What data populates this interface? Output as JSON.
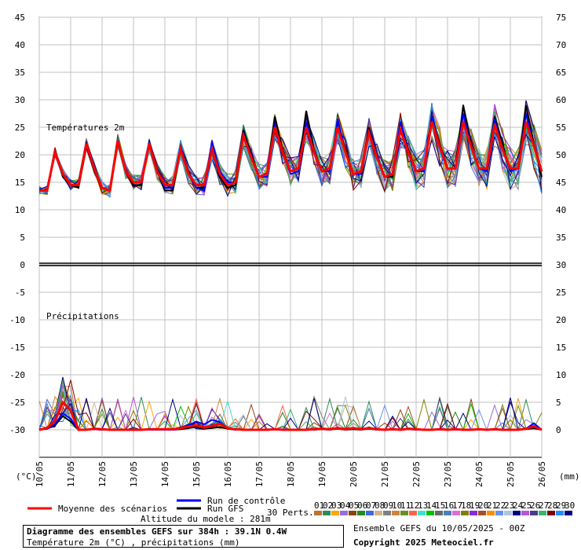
{
  "chart_data": {
    "type": "line",
    "title": "Diagramme des ensembles GEFS sur 384h : 39.1N 0.4W",
    "subtitle": "Température 2m (°C) , précipitations (mm)",
    "panel_top_label": "Températures 2m",
    "panel_bottom_label": "Précipitations",
    "y_left_unit": "(°C)",
    "y_right_unit": "(mm)",
    "y_left_ticks": [
      "45",
      "40",
      "35",
      "30",
      "25",
      "20",
      "15",
      "10",
      "5",
      "0",
      "-5",
      "-10",
      "-15",
      "-20",
      "-25",
      "-30"
    ],
    "y_right_ticks": [
      "75",
      "70",
      "65",
      "60",
      "55",
      "50",
      "45",
      "40",
      "35",
      "30",
      "25",
      "20",
      "15",
      "10",
      "5",
      "0"
    ],
    "x_ticks": [
      "10/05",
      "11/05",
      "12/05",
      "13/05",
      "14/05",
      "15/05",
      "16/05",
      "17/05",
      "18/05",
      "19/05",
      "20/05",
      "21/05",
      "22/05",
      "23/05",
      "24/05",
      "25/05",
      "26/05"
    ],
    "grid": true,
    "temperature": {
      "x_hours": [
        0,
        6,
        12,
        18,
        24,
        30,
        36,
        42,
        48,
        54,
        60,
        66,
        72,
        78,
        84,
        90,
        96,
        102,
        108,
        114,
        120,
        126,
        132,
        138,
        144,
        150,
        156,
        162,
        168,
        174,
        180,
        186,
        192,
        198,
        204,
        210,
        216,
        222,
        228,
        234,
        240,
        246,
        252,
        258,
        264,
        270,
        276,
        282,
        288,
        294,
        300,
        306,
        312,
        318,
        324,
        330,
        336,
        342,
        348,
        354,
        360,
        366,
        372,
        378,
        384
      ],
      "mean": [
        13.5,
        13.5,
        20.5,
        16.5,
        14.5,
        14.5,
        22.0,
        17.5,
        14.0,
        13.5,
        22.5,
        17.0,
        15.0,
        15.0,
        22.0,
        17.0,
        14.5,
        14.5,
        21.0,
        16.5,
        14.5,
        14.5,
        21.0,
        16.5,
        14.5,
        15.0,
        23.5,
        19.5,
        16.0,
        16.5,
        25.0,
        20.5,
        17.0,
        17.5,
        25.0,
        20.5,
        17.0,
        17.5,
        25.0,
        20.5,
        16.5,
        17.0,
        24.0,
        19.5,
        16.0,
        16.5,
        24.5,
        20.5,
        17.0,
        17.5,
        26.0,
        21.5,
        17.5,
        17.5,
        26.0,
        21.5,
        17.5,
        17.5,
        25.5,
        21.0,
        17.5,
        17.5,
        26.0,
        21.5,
        17.0
      ],
      "gfs": [
        13.5,
        13.5,
        21.0,
        16.0,
        14.5,
        14.0,
        21.5,
        17.0,
        14.0,
        13.5,
        22.0,
        17.0,
        14.5,
        14.5,
        22.0,
        17.0,
        13.5,
        13.5,
        21.0,
        17.0,
        14.0,
        14.0,
        21.0,
        16.0,
        14.0,
        14.5,
        24.5,
        20.0,
        16.0,
        16.5,
        27.0,
        21.0,
        17.0,
        17.5,
        28.0,
        21.0,
        17.0,
        17.5,
        26.0,
        21.0,
        16.5,
        17.0,
        25.0,
        20.0,
        16.0,
        16.0,
        26.0,
        21.0,
        17.0,
        17.5,
        27.0,
        22.0,
        17.5,
        17.5,
        29.0,
        22.0,
        17.5,
        17.5,
        27.0,
        22.0,
        17.0,
        17.5,
        29.0,
        22.0,
        16.0
      ],
      "control": [
        13.5,
        13.5,
        20.5,
        16.5,
        14.5,
        14.5,
        22.0,
        17.5,
        14.0,
        13.5,
        22.5,
        17.0,
        15.0,
        15.0,
        22.0,
        17.0,
        14.0,
        14.0,
        21.5,
        16.5,
        14.0,
        13.5,
        22.5,
        17.0,
        15.0,
        15.0,
        24.0,
        19.5,
        16.0,
        16.0,
        25.5,
        20.5,
        16.5,
        17.0,
        26.0,
        20.5,
        17.0,
        17.0,
        26.5,
        20.5,
        16.5,
        16.5,
        24.5,
        20.0,
        16.0,
        16.5,
        26.0,
        20.5,
        17.0,
        17.0,
        27.0,
        21.5,
        17.5,
        17.5,
        27.5,
        21.5,
        17.5,
        17.0,
        26.5,
        21.0,
        17.0,
        17.5,
        27.5,
        21.5,
        17.0
      ]
    },
    "precipitation": {
      "x_hours": [
        0,
        6,
        12,
        18,
        24,
        30,
        36,
        42,
        48,
        54,
        60,
        66,
        72,
        78,
        84,
        90,
        96,
        102,
        108,
        114,
        120,
        126,
        132,
        138,
        144,
        150,
        156,
        162,
        168,
        174,
        180,
        186,
        192,
        198,
        204,
        210,
        216,
        222,
        228,
        234,
        240,
        246,
        252,
        258,
        264,
        270,
        276,
        282,
        288,
        294,
        300,
        306,
        312,
        318,
        324,
        330,
        336,
        342,
        348,
        354,
        360,
        366,
        372,
        378,
        384
      ],
      "mean": [
        0,
        0.3,
        1.6,
        5.0,
        3.5,
        0,
        0,
        0.2,
        0.1,
        0,
        0,
        0,
        0,
        0,
        0.1,
        0.1,
        0.1,
        0.1,
        0.3,
        0.6,
        0.8,
        0.4,
        0.7,
        1.1,
        0.3,
        0.1,
        0,
        0,
        0,
        0,
        0.1,
        0,
        0,
        0,
        0,
        0.1,
        0.2,
        0.1,
        0.3,
        0.1,
        0.3,
        0.1,
        0.3,
        0.1,
        0,
        0.1,
        0,
        0.2,
        0.1,
        0,
        0,
        0.1,
        0,
        0.1,
        0,
        0,
        0.1,
        0,
        0.1,
        0,
        0,
        0,
        0.2,
        0.6,
        0
      ],
      "gfs": [
        0,
        0.2,
        0.8,
        2.5,
        1.5,
        0,
        0,
        0.1,
        0,
        0,
        0,
        0,
        0,
        0,
        0,
        0,
        0,
        0,
        0.1,
        0.3,
        0.5,
        0.2,
        0.3,
        0.5,
        0.2,
        0,
        0,
        0,
        0,
        0,
        0,
        0,
        0,
        0,
        0,
        0,
        0.1,
        0,
        0.2,
        0,
        0.1,
        0,
        0.2,
        0,
        0,
        0,
        0,
        0.1,
        0,
        0,
        0,
        0,
        0,
        0,
        0,
        0,
        0,
        0,
        0,
        0,
        0,
        0,
        0.1,
        0.3,
        0
      ],
      "control": [
        0,
        0.2,
        1.0,
        3.0,
        2.0,
        0,
        0,
        0.1,
        0,
        0,
        0,
        0,
        0,
        0,
        0,
        0,
        0,
        0,
        0.2,
        0.8,
        1.5,
        1.0,
        1.8,
        1.4,
        0.3,
        0,
        0,
        0,
        0,
        0,
        0.1,
        0,
        0,
        0,
        0,
        0,
        0.3,
        0,
        0.4,
        0,
        0.3,
        0,
        0.4,
        0,
        0,
        0,
        0,
        0.2,
        0,
        0,
        0,
        0,
        0,
        0,
        0,
        0,
        0,
        0,
        0,
        0,
        0,
        0,
        0.2,
        1.2,
        0
      ]
    },
    "legend": {
      "mean": "Moyenne des scénarios",
      "control": "Run de contrôle",
      "gfs": "Run GFS",
      "perts_label": "30 Perts."
    },
    "colors": {
      "mean": "#ff0000",
      "control": "#0000ff",
      "gfs": "#000000",
      "grid": "#c0c0c0",
      "perts": [
        "#b87333",
        "#2e8b57",
        "#ffa500",
        "#9370db",
        "#8b4513",
        "#228b22",
        "#4169e1",
        "#d2b48c",
        "#808080",
        "#cd853f",
        "#6b8e23",
        "#ff6347",
        "#40e0d0",
        "#00c000",
        "#696969",
        "#4682b4",
        "#da70d6",
        "#808000",
        "#8a2be2",
        "#a0522d",
        "#ff8c00",
        "#6495ed",
        "#b0c4de",
        "#00008b",
        "#ba55d3",
        "#483d8b",
        "#3cb371",
        "#800000",
        "#1e90ff",
        "#000080"
      ]
    },
    "perts_numbers": [
      "01",
      "02",
      "03",
      "04",
      "05",
      "06",
      "07",
      "08",
      "09",
      "10",
      "11",
      "12",
      "13",
      "14",
      "15",
      "16",
      "17",
      "18",
      "19",
      "20",
      "21",
      "22",
      "23",
      "24",
      "25",
      "26",
      "27",
      "28",
      "29",
      "30"
    ]
  },
  "footer": {
    "title": "Diagramme des ensembles GEFS sur 384h : 39.1N 0.4W",
    "subtitle": "Température 2m (°C) , précipitations (mm)",
    "altitude": "Altitude du modele : 281m",
    "run_info": "Ensemble GEFS du 10/05/2025 - 00Z",
    "copyright": "Copyright 2025 Meteociel.fr"
  }
}
